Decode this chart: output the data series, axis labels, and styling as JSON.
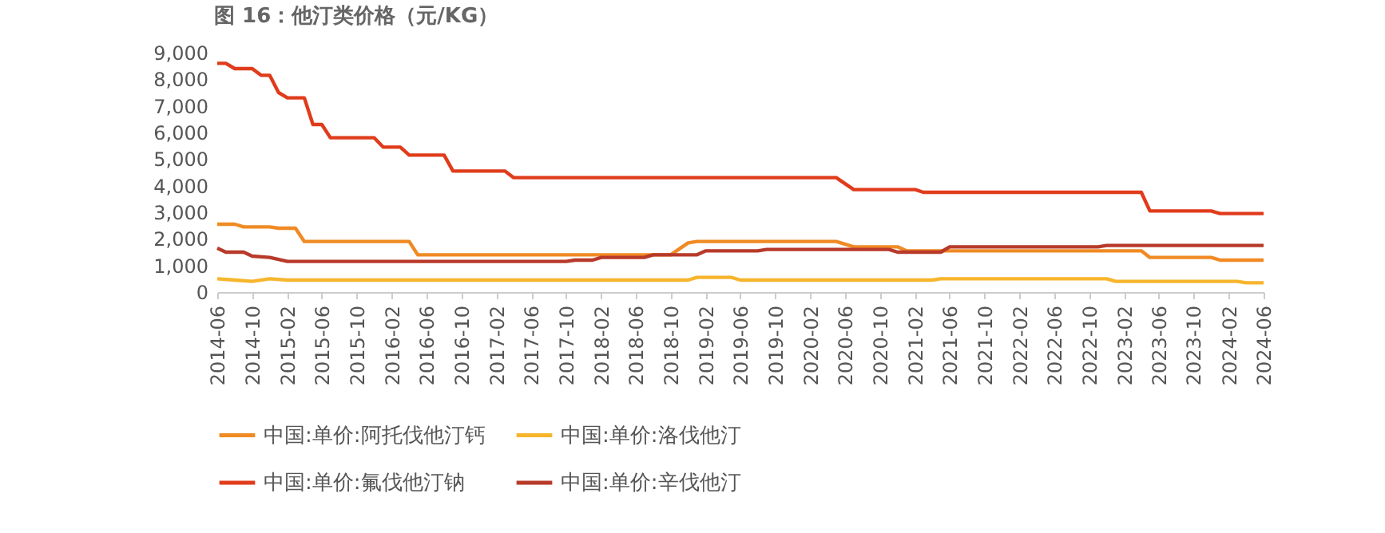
{
  "chart_data": {
    "type": "line",
    "title": "图 16：他汀类价格（元/KG）",
    "xlim": [
      "2014-06",
      "2024-06"
    ],
    "xticks": [
      "2014-06",
      "2014-10",
      "2015-02",
      "2015-06",
      "2015-10",
      "2016-02",
      "2016-06",
      "2016-10",
      "2017-02",
      "2017-06",
      "2017-10",
      "2018-02",
      "2018-06",
      "2018-10",
      "2019-02",
      "2019-06",
      "2019-10",
      "2020-02",
      "2020-06",
      "2020-10",
      "2021-02",
      "2021-06",
      "2021-10",
      "2022-02",
      "2022-06",
      "2022-10",
      "2023-02",
      "2023-06",
      "2023-10",
      "2024-02",
      "2024-06"
    ],
    "ylim": [
      0,
      9000
    ],
    "yticks": [
      0,
      {
        "value": 1000,
        "label": "1,000"
      },
      {
        "value": 2000,
        "label": "2,000"
      },
      {
        "value": 3000,
        "label": "3,000"
      },
      {
        "value": 4000,
        "label": "4,000"
      },
      {
        "value": 5000,
        "label": "5,000"
      },
      {
        "value": 6000,
        "label": "6,000"
      },
      {
        "value": 7000,
        "label": "7,000"
      },
      {
        "value": 8000,
        "label": "8,000"
      },
      {
        "value": 9000,
        "label": "9,000"
      }
    ],
    "grid": false,
    "legend": "bottom",
    "series": [
      {
        "name": "中国:单价:阿托伐他汀钙",
        "color": "#f08a24",
        "x": [
          "2014-06",
          "2014-08",
          "2014-09",
          "2014-12",
          "2015-01",
          "2015-03",
          "2015-04",
          "2016-04",
          "2016-05",
          "2018-10",
          "2018-12",
          "2019-01",
          "2020-05",
          "2020-07",
          "2020-12",
          "2021-01",
          "2023-04",
          "2023-05",
          "2023-12",
          "2024-01",
          "2024-06"
        ],
        "values": [
          2550,
          2550,
          2450,
          2450,
          2400,
          2400,
          1900,
          1900,
          1400,
          1400,
          1850,
          1900,
          1900,
          1700,
          1700,
          1550,
          1550,
          1300,
          1300,
          1200,
          1200
        ]
      },
      {
        "name": "中国:单价:洛伐他汀",
        "color": "#f7b52c",
        "x": [
          "2014-06",
          "2014-08",
          "2014-10",
          "2014-12",
          "2015-02",
          "2018-12",
          "2019-01",
          "2019-05",
          "2019-06",
          "2021-04",
          "2021-05",
          "2022-12",
          "2023-01",
          "2024-03",
          "2024-04",
          "2024-06"
        ],
        "values": [
          500,
          450,
          400,
          500,
          450,
          450,
          550,
          550,
          450,
          450,
          500,
          500,
          400,
          400,
          350,
          350
        ]
      },
      {
        "name": "中国:单价:氟伐他汀钠",
        "color": "#e03c1c",
        "x": [
          "2014-06",
          "2014-07",
          "2014-08",
          "2014-10",
          "2014-11",
          "2014-12",
          "2015-01",
          "2015-02",
          "2015-04",
          "2015-05",
          "2015-06",
          "2015-07",
          "2015-12",
          "2016-01",
          "2016-03",
          "2016-04",
          "2016-08",
          "2016-09",
          "2017-03",
          "2017-04",
          "2020-05",
          "2020-07",
          "2021-02",
          "2021-03",
          "2023-04",
          "2023-05",
          "2023-12",
          "2024-01",
          "2024-06"
        ],
        "values": [
          8600,
          8600,
          8400,
          8400,
          8150,
          8150,
          7500,
          7300,
          7300,
          6300,
          6300,
          5800,
          5800,
          5450,
          5450,
          5150,
          5150,
          4550,
          4550,
          4300,
          4300,
          3850,
          3850,
          3750,
          3750,
          3050,
          3050,
          2950,
          2950
        ]
      },
      {
        "name": "中国:单价:辛伐他汀",
        "color": "#b83a2a",
        "x": [
          "2014-06",
          "2014-07",
          "2014-09",
          "2014-10",
          "2014-12",
          "2015-02",
          "2017-10",
          "2017-11",
          "2018-01",
          "2018-02",
          "2018-07",
          "2018-08",
          "2019-01",
          "2019-02",
          "2019-08",
          "2019-09",
          "2020-11",
          "2020-12",
          "2021-05",
          "2021-06",
          "2022-11",
          "2022-12",
          "2024-06"
        ],
        "values": [
          1650,
          1500,
          1500,
          1350,
          1300,
          1150,
          1150,
          1200,
          1200,
          1300,
          1300,
          1400,
          1400,
          1550,
          1550,
          1600,
          1600,
          1500,
          1500,
          1700,
          1700,
          1750,
          1750
        ]
      }
    ]
  }
}
